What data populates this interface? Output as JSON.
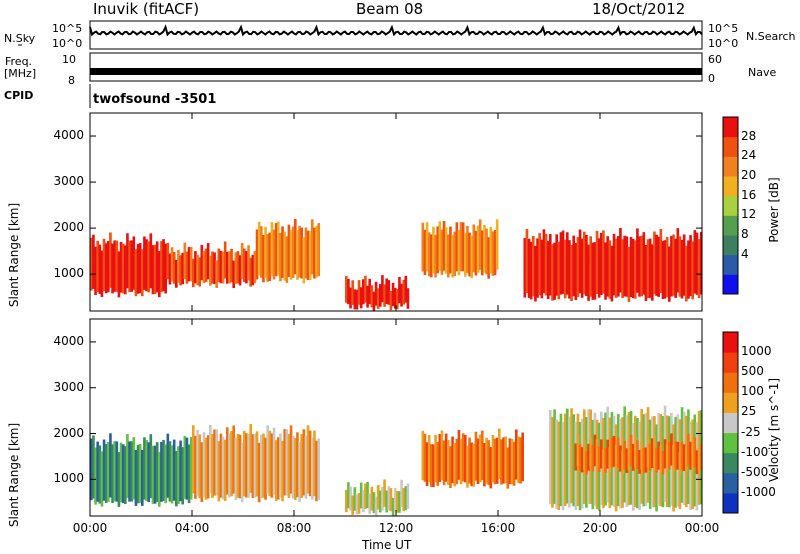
{
  "header": {
    "station": "Inuvik (fitACF)",
    "beam": "Beam 08",
    "date": "18/Oct/2012"
  },
  "strip": {
    "nsky_label": "N.Sky",
    "nsky_ticks": [
      "10^5",
      "10^0"
    ],
    "nsearch_label": "N.Search",
    "nsearch_ticks": [
      "10^5",
      "10^0"
    ],
    "freq_label_1": "Freq.",
    "freq_label_2": "[MHz]",
    "freq_ticks": [
      "10",
      "8"
    ],
    "nave_label": "Nave",
    "nave_ticks": [
      "60",
      "0"
    ],
    "cpid_label": "CPID",
    "cpid_value": "twofsound -3501"
  },
  "chart_data": [
    {
      "type": "heatmap",
      "title": "",
      "xlabel": "Time UT",
      "ylabel": "Slant Range [km]",
      "x_ticks": [
        "00:00",
        "04:00",
        "08:00",
        "12:00",
        "16:00",
        "20:00",
        "00:00"
      ],
      "y_ticks": [
        "1000",
        "2000",
        "3000",
        "4000"
      ],
      "ylim": [
        200,
        4500
      ],
      "colorbar": {
        "label": "Power [dB]",
        "ticks": [
          "28",
          "24",
          "20",
          "16",
          "12",
          "8",
          "4"
        ],
        "colors": [
          "#1010ee",
          "#2a5aa8",
          "#3d8060",
          "#55a050",
          "#a8d040",
          "#f0b020",
          "#f08020",
          "#f05010",
          "#e81010"
        ]
      },
      "bands": [
        {
          "t0": 0.0,
          "t1": 3.0,
          "r0": 600,
          "r1": 1700,
          "level": 8
        },
        {
          "t0": 3.0,
          "t1": 6.5,
          "r0": 800,
          "r1": 1500,
          "level": 7
        },
        {
          "t0": 6.5,
          "t1": 9.0,
          "r0": 900,
          "r1": 2000,
          "level": 6
        },
        {
          "t0": 10.0,
          "t1": 12.5,
          "r0": 300,
          "r1": 800,
          "level": 8
        },
        {
          "t0": 13.0,
          "t1": 16.0,
          "r0": 1000,
          "r1": 2000,
          "level": 6
        },
        {
          "t0": 17.0,
          "t1": 24.0,
          "r0": 500,
          "r1": 1800,
          "level": 8
        }
      ]
    },
    {
      "type": "heatmap",
      "title": "",
      "xlabel": "Time UT",
      "ylabel": "Slant Range [km]",
      "x_ticks": [
        "00:00",
        "04:00",
        "08:00",
        "12:00",
        "16:00",
        "20:00",
        "00:00"
      ],
      "y_ticks": [
        "1000",
        "2000",
        "3000",
        "4000"
      ],
      "ylim": [
        200,
        4500
      ],
      "colorbar": {
        "label": "Velocity [m s^-1]",
        "ticks": [
          "1000",
          "500",
          "100",
          "25",
          "-25",
          "-100",
          "-500",
          "-1000"
        ],
        "colors": [
          "#1030c0",
          "#2a60a0",
          "#3a8860",
          "#60c040",
          "#c8c8c8",
          "#f0a020",
          "#f07010",
          "#f04010",
          "#e81010"
        ]
      },
      "bands": [
        {
          "t0": 0.0,
          "t1": 4.0,
          "r0": 500,
          "r1": 1800,
          "level": 2
        },
        {
          "t0": 4.0,
          "t1": 9.0,
          "r0": 600,
          "r1": 2000,
          "level": 5
        },
        {
          "t0": 10.0,
          "t1": 12.5,
          "r0": 300,
          "r1": 800,
          "level": 4
        },
        {
          "t0": 13.0,
          "t1": 17.0,
          "r0": 900,
          "r1": 1900,
          "level": 6
        },
        {
          "t0": 18.0,
          "t1": 24.0,
          "r0": 400,
          "r1": 2400,
          "level": 4
        },
        {
          "t0": 19.0,
          "t1": 24.0,
          "r0": 1200,
          "r1": 1800,
          "level": 6
        }
      ]
    }
  ]
}
